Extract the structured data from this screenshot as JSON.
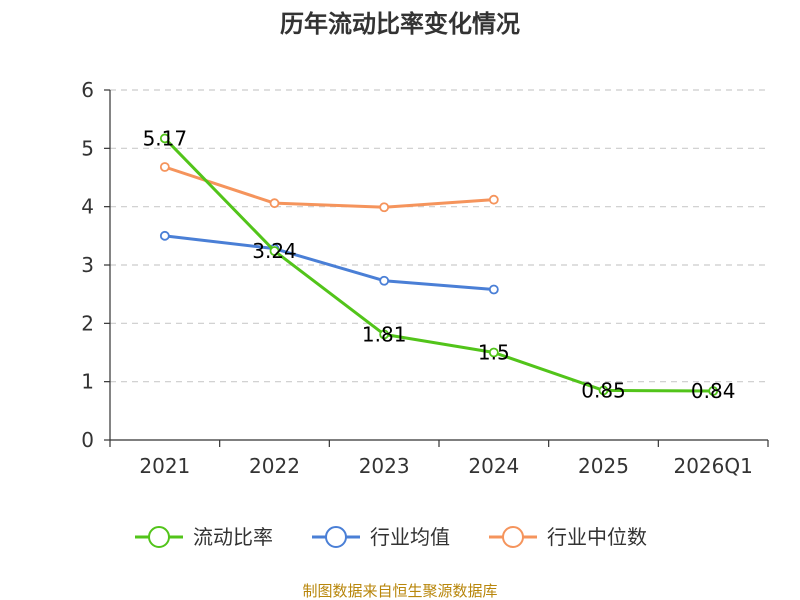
{
  "chart_data": {
    "type": "line",
    "title": "历年流动比率变化情况",
    "categories": [
      "2021",
      "2022",
      "2023",
      "2024",
      "2025",
      "2026Q1"
    ],
    "ylim": [
      0,
      6
    ],
    "yticks": [
      0,
      1,
      2,
      3,
      4,
      5,
      6
    ],
    "grid": true,
    "legend_position": "bottom",
    "series": [
      {
        "name": "流动比率",
        "color": "#52c41a",
        "values": [
          5.17,
          3.24,
          1.81,
          1.5,
          0.85,
          0.84
        ],
        "show_labels": true
      },
      {
        "name": "行业均值",
        "color": "#4a7fd6",
        "values": [
          3.5,
          3.28,
          2.73,
          2.58,
          null,
          null
        ],
        "show_labels": false
      },
      {
        "name": "行业中位数",
        "color": "#f5945c",
        "values": [
          4.68,
          4.06,
          3.99,
          4.12,
          null,
          null
        ],
        "show_labels": false
      }
    ],
    "data_labels": [
      "5.17",
      "3.24",
      "1.81",
      "1.5",
      "0.85",
      "0.84"
    ],
    "source": "制图数据来自恒生聚源数据库"
  }
}
